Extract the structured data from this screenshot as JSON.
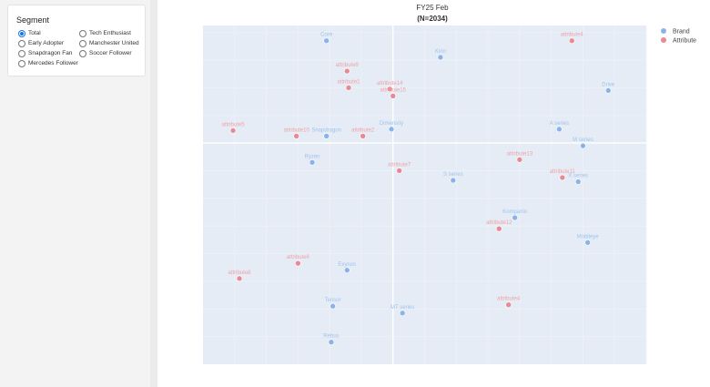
{
  "sidebar": {
    "title": "Segment",
    "options": [
      {
        "label": "Total",
        "checked": true
      },
      {
        "label": "Tech Enthusiast",
        "checked": false
      },
      {
        "label": "Early Adopter",
        "checked": false
      },
      {
        "label": "Manchester United",
        "checked": false
      },
      {
        "label": "Snapdragon Fan",
        "checked": false
      },
      {
        "label": "Soccer Follower",
        "checked": false
      },
      {
        "label": "Mercedes Follower",
        "checked": false
      }
    ]
  },
  "chart_data": {
    "type": "scatter",
    "title": "FY25 Feb",
    "subtitle": "(N=2034)",
    "xlabel": "",
    "ylabel": "",
    "grid": true,
    "legend_position": "top-right",
    "colors": {
      "Brand": "#8ab4e8",
      "Attribute": "#e88a93",
      "Brand_label": "#9fc3ee",
      "Attribute_label": "#eea3aa",
      "plot_bg": "#e5ecf5"
    },
    "series": [
      {
        "name": "Brand",
        "points": [
          {
            "label": "Core",
            "x": -0.42,
            "y": 0.74
          },
          {
            "label": "Kirin",
            "x": 0.3,
            "y": 0.62
          },
          {
            "label": "Drive",
            "x": 1.36,
            "y": 0.38
          },
          {
            "label": "Dimensity",
            "x": -0.01,
            "y": 0.1
          },
          {
            "label": "Snapdragon",
            "x": -0.42,
            "y": 0.05
          },
          {
            "label": "A series",
            "x": 1.05,
            "y": 0.1
          },
          {
            "label": "M series",
            "x": 1.2,
            "y": -0.02
          },
          {
            "label": "Ryzen",
            "x": -0.51,
            "y": -0.14
          },
          {
            "label": "S series",
            "x": 0.38,
            "y": -0.27
          },
          {
            "label": "X series",
            "x": 1.17,
            "y": -0.28
          },
          {
            "label": "Kompanio",
            "x": 0.77,
            "y": -0.54
          },
          {
            "label": "Mobileye",
            "x": 1.23,
            "y": -0.72
          },
          {
            "label": "Exynos",
            "x": -0.29,
            "y": -0.92
          },
          {
            "label": "Tensor",
            "x": -0.38,
            "y": -1.18
          },
          {
            "label": "MT series",
            "x": 0.06,
            "y": -1.23
          },
          {
            "label": "Rebus",
            "x": -0.39,
            "y": -1.44
          }
        ]
      },
      {
        "name": "Attribute",
        "points": [
          {
            "label": "attribute4",
            "x": 1.13,
            "y": 0.74
          },
          {
            "label": "attribute9",
            "x": -0.29,
            "y": 0.52
          },
          {
            "label": "attribute1",
            "x": -0.28,
            "y": 0.4
          },
          {
            "label": "attribute14",
            "x": -0.02,
            "y": 0.39
          },
          {
            "label": "attribute15",
            "x": 0.0,
            "y": 0.34
          },
          {
            "label": "attribute5",
            "x": -1.01,
            "y": 0.09
          },
          {
            "label": "attribute10",
            "x": -0.61,
            "y": 0.05
          },
          {
            "label": "attribute2",
            "x": -0.19,
            "y": 0.05
          },
          {
            "label": "attribute13",
            "x": 0.8,
            "y": -0.12
          },
          {
            "label": "attribute7",
            "x": 0.04,
            "y": -0.2
          },
          {
            "label": "attribute11",
            "x": 1.07,
            "y": -0.25
          },
          {
            "label": "attribute12",
            "x": 0.67,
            "y": -0.62
          },
          {
            "label": "attribute6",
            "x": -0.6,
            "y": -0.87
          },
          {
            "label": "attribute8",
            "x": -0.97,
            "y": -0.98
          },
          {
            "label": "attribute4",
            "x": 0.73,
            "y": -1.17
          }
        ]
      }
    ]
  }
}
